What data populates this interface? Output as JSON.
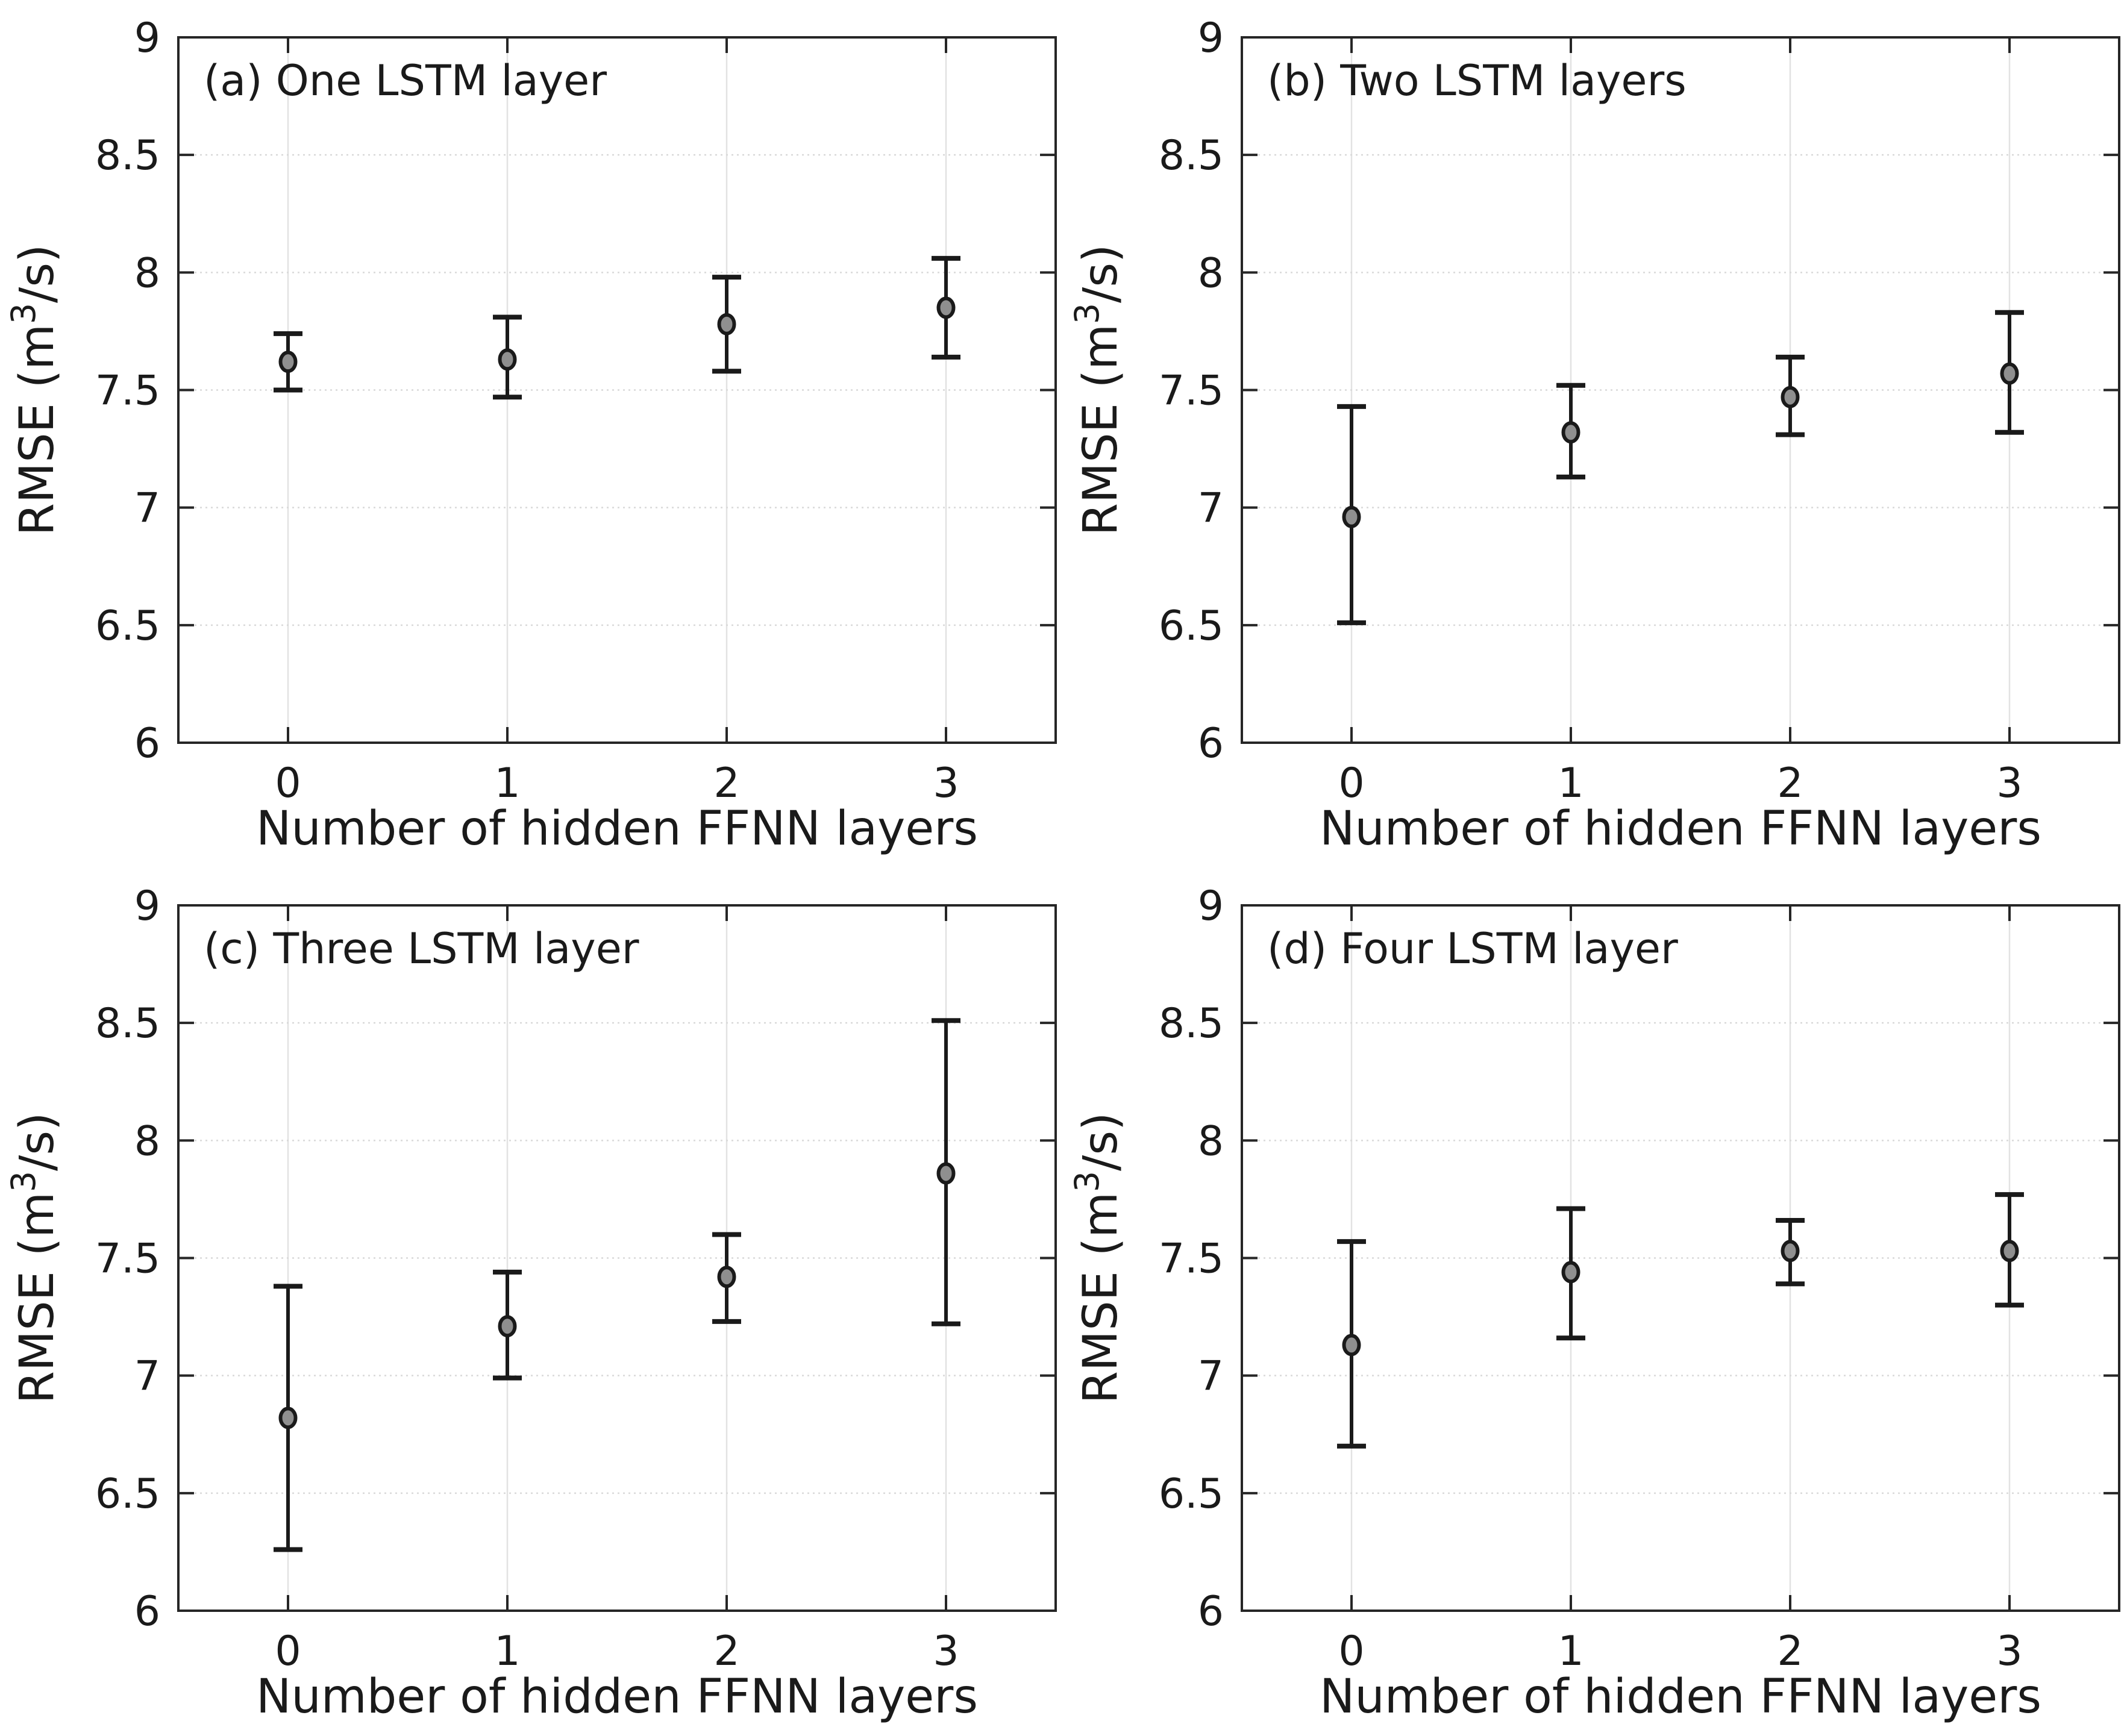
{
  "figure": {
    "background": "#ffffff",
    "axis_color": "#262626",
    "text_color": "#1a1a1a",
    "grid_color_vertical": "#e2e2e2",
    "grid_color_horizontal": "#d9d9d9",
    "marker_fill": "#8f8f8f",
    "marker_edge": "#1a1a1a",
    "errorbar_color": "#1a1a1a",
    "xlabel": "Number of hidden FFNN layers",
    "ylabel": "RMSE (m³/s)",
    "ylabel_prefix": "RMSE (m",
    "ylabel_superscript": "3",
    "ylabel_suffix": "/s)",
    "xlim": [
      -0.5,
      3.5
    ],
    "ylim": [
      6,
      9
    ],
    "xticks": [
      0,
      1,
      2,
      3
    ],
    "xtick_labels": [
      "0",
      "1",
      "2",
      "3"
    ],
    "yticks": [
      6,
      6.5,
      7,
      7.5,
      8,
      8.5,
      9
    ],
    "ytick_labels": [
      "6",
      "6.5",
      "7",
      "7.5",
      "8",
      "8.5",
      "9"
    ],
    "grid": true,
    "legend": false
  },
  "chart_data": [
    {
      "type": "scatter",
      "panel": "a",
      "title": "(a) One LSTM layer",
      "xlabel": "Number of hidden FFNN layers",
      "ylabel": "RMSE (m³/s)",
      "xlim": [
        -0.5,
        3.5
      ],
      "ylim": [
        6,
        9
      ],
      "x": [
        0,
        1,
        2,
        3
      ],
      "y": [
        7.62,
        7.63,
        7.78,
        7.85
      ],
      "err_low": [
        7.5,
        7.47,
        7.58,
        7.64
      ],
      "err_high": [
        7.74,
        7.81,
        7.98,
        8.06
      ]
    },
    {
      "type": "scatter",
      "panel": "b",
      "title": "(b) Two LSTM layers",
      "xlabel": "Number of hidden FFNN layers",
      "ylabel": "RMSE (m³/s)",
      "xlim": [
        -0.5,
        3.5
      ],
      "ylim": [
        6,
        9
      ],
      "x": [
        0,
        1,
        2,
        3
      ],
      "y": [
        6.96,
        7.32,
        7.47,
        7.57
      ],
      "err_low": [
        6.51,
        7.13,
        7.31,
        7.32
      ],
      "err_high": [
        7.43,
        7.52,
        7.64,
        7.83
      ]
    },
    {
      "type": "scatter",
      "panel": "c",
      "title": "(c) Three LSTM layer",
      "xlabel": "Number of hidden FFNN layers",
      "ylabel": "RMSE (m³/s)",
      "xlim": [
        -0.5,
        3.5
      ],
      "ylim": [
        6,
        9
      ],
      "x": [
        0,
        1,
        2,
        3
      ],
      "y": [
        6.82,
        7.21,
        7.42,
        7.86
      ],
      "err_low": [
        6.26,
        6.99,
        7.23,
        7.22
      ],
      "err_high": [
        7.38,
        7.44,
        7.6,
        8.51
      ]
    },
    {
      "type": "scatter",
      "panel": "d",
      "title": "(d) Four LSTM layer",
      "xlabel": "Number of hidden FFNN layers",
      "ylabel": "RMSE (m³/s)",
      "xlim": [
        -0.5,
        3.5
      ],
      "ylim": [
        6,
        9
      ],
      "x": [
        0,
        1,
        2,
        3
      ],
      "y": [
        7.13,
        7.44,
        7.53,
        7.53
      ],
      "err_low": [
        6.7,
        7.16,
        7.39,
        7.3
      ],
      "err_high": [
        7.57,
        7.71,
        7.66,
        7.77
      ]
    }
  ]
}
